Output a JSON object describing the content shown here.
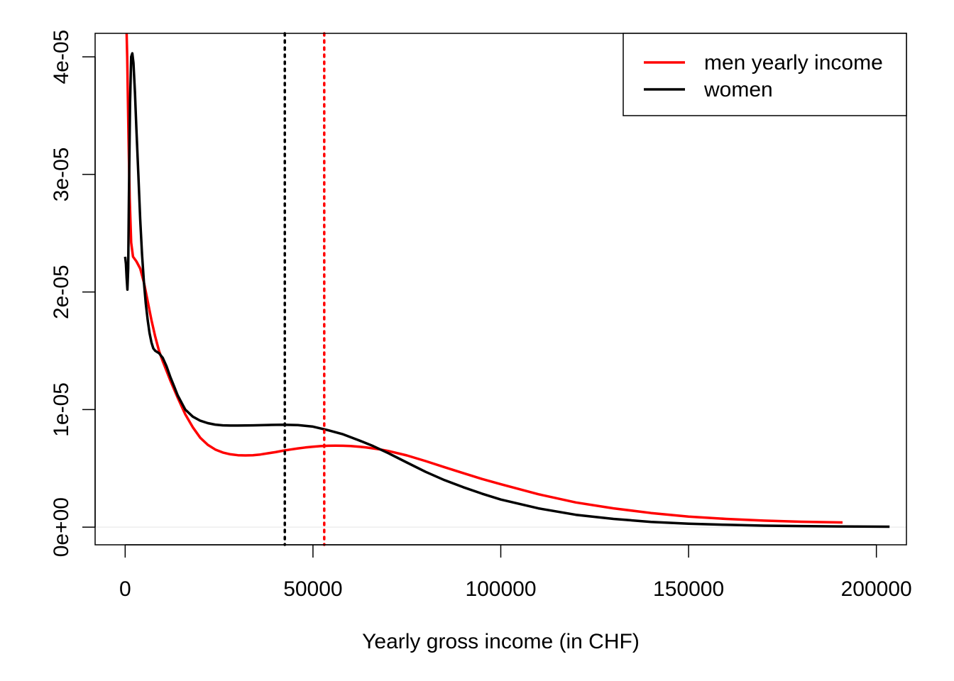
{
  "chart_data": {
    "type": "line",
    "title": "",
    "xlabel": "Yearly gross income (in CHF)",
    "ylabel": "",
    "xlim": [
      -8000,
      208000
    ],
    "ylim": [
      -1.5e-06,
      4.2e-05
    ],
    "xticks": [
      0,
      50000,
      100000,
      150000,
      200000
    ],
    "xtick_labels": [
      "0",
      "50000",
      "100000",
      "150000",
      "200000"
    ],
    "yticks": [
      0,
      1e-05,
      2e-05,
      3e-05,
      4e-05
    ],
    "ytick_labels": [
      "0e+00",
      "1e-05",
      "2e-05",
      "3e-05",
      "4e-05"
    ],
    "grid": false,
    "legend_position": "top-right",
    "baseline": {
      "y": 0,
      "color": "#eeeeee"
    },
    "series": [
      {
        "name": "men yearly income",
        "color": "#ff0000",
        "x": [
          400,
          550,
          700,
          900,
          1200,
          1600,
          2100,
          3000,
          4000,
          5000,
          6000,
          7000,
          8000,
          9000,
          10000,
          12000,
          14000,
          16000,
          18000,
          20000,
          22000,
          24000,
          26000,
          28000,
          30000,
          32000,
          34000,
          36000,
          38000,
          40000,
          42000,
          44000,
          46000,
          48000,
          50000,
          52000,
          54000,
          56000,
          58000,
          60000,
          62000,
          64000,
          66000,
          68000,
          70000,
          75000,
          80000,
          85000,
          90000,
          95000,
          100000,
          110000,
          120000,
          130000,
          140000,
          150000,
          160000,
          170000,
          180000,
          191000
        ],
        "y": [
          4.2e-05,
          4e-05,
          3.7e-05,
          3.3e-05,
          2.8e-05,
          2.42e-05,
          2.3e-05,
          2.26e-05,
          2.2e-05,
          2.08e-05,
          1.92e-05,
          1.76e-05,
          1.62e-05,
          1.5e-05,
          1.41e-05,
          1.25e-05,
          1.1e-05,
          9.6e-06,
          8.5e-06,
          7.6e-06,
          7e-06,
          6.6e-06,
          6.35e-06,
          6.2e-06,
          6.12e-06,
          6.1e-06,
          6.12e-06,
          6.18e-06,
          6.28e-06,
          6.38e-06,
          6.5e-06,
          6.6e-06,
          6.7e-06,
          6.78e-06,
          6.84e-06,
          6.89e-06,
          6.92e-06,
          6.93e-06,
          6.92e-06,
          6.9e-06,
          6.85e-06,
          6.79e-06,
          6.7e-06,
          6.6e-06,
          6.48e-06,
          6.1e-06,
          5.62e-06,
          5.1e-06,
          4.6e-06,
          4.1e-06,
          3.65e-06,
          2.8e-06,
          2.1e-06,
          1.6e-06,
          1.2e-06,
          9e-07,
          7e-07,
          5.6e-07,
          4.6e-07,
          4e-07
        ]
      },
      {
        "name": "women",
        "color": "#000000",
        "x": [
          0,
          200,
          400,
          600,
          800,
          1000,
          1300,
          1600,
          1900,
          2200,
          2600,
          3000,
          3500,
          4000,
          4500,
          5000,
          5500,
          6000,
          6500,
          7000,
          7500,
          8000,
          8500,
          9000,
          10000,
          11000,
          12000,
          13000,
          14000,
          16000,
          18000,
          20000,
          22000,
          24000,
          26000,
          28000,
          30000,
          34000,
          38000,
          42000,
          46000,
          50000,
          54000,
          58000,
          62000,
          66000,
          70000,
          75000,
          80000,
          85000,
          90000,
          95000,
          100000,
          110000,
          120000,
          130000,
          140000,
          150000,
          160000,
          170000,
          180000,
          190000,
          203500
        ],
        "y": [
          2.3e-05,
          2.24e-05,
          2.12e-05,
          2.02e-05,
          2.2e-05,
          2.8e-05,
          3.6e-05,
          4e-05,
          4.03e-05,
          3.95e-05,
          3.7e-05,
          3.38e-05,
          3e-05,
          2.62e-05,
          2.32e-05,
          2.08e-05,
          1.9e-05,
          1.76e-05,
          1.65e-05,
          1.57e-05,
          1.52e-05,
          1.5e-05,
          1.49e-05,
          1.48e-05,
          1.44e-05,
          1.37e-05,
          1.28e-05,
          1.2e-05,
          1.12e-05,
          1e-05,
          9.4e-06,
          9.05e-06,
          8.85e-06,
          8.72e-06,
          8.66e-06,
          8.64e-06,
          8.64e-06,
          8.66e-06,
          8.69e-06,
          8.71e-06,
          8.68e-06,
          8.55e-06,
          8.25e-06,
          7.9e-06,
          7.42e-06,
          6.9e-06,
          6.3e-06,
          5.5e-06,
          4.7e-06,
          4e-06,
          3.4e-06,
          2.85e-06,
          2.35e-06,
          1.6e-06,
          1.05e-06,
          7e-07,
          4.5e-07,
          3e-07,
          2e-07,
          1.3e-07,
          9e-08,
          6e-08,
          4e-08
        ]
      }
    ],
    "vertical_lines": [
      {
        "x": 42500,
        "color": "#000000",
        "style": "dotted"
      },
      {
        "x": 53000,
        "color": "#ff0000",
        "style": "dotted"
      }
    ]
  }
}
